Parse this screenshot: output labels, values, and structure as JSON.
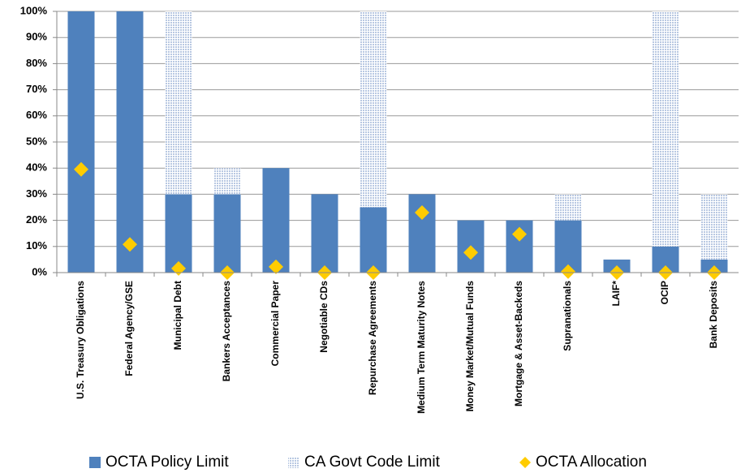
{
  "chart_data": {
    "type": "bar",
    "stacked": true,
    "grid": true,
    "legend": "bottom",
    "categories": [
      "U.S. Treasury Obligations",
      "Federal Agency/GSE",
      "Municipal Debt",
      "Bankers Acceptances",
      "Commercial Paper",
      "Negotiable CDs",
      "Repurchase Agreements",
      "Medium Term Maturity Notes",
      "Money Market/Mutual Funds",
      "Mortgage & Asset-Backeds",
      "Supranationals",
      "LAIF*",
      "OCIP",
      "Bank Deposits"
    ],
    "series": [
      {
        "name": "OCTA Policy Limit",
        "type": "bar",
        "color": "#4f81bd",
        "values": [
          100,
          100,
          30,
          30,
          40,
          30,
          25,
          30,
          20,
          20,
          20,
          5,
          10,
          5
        ]
      },
      {
        "name": "CA Govt Code Limit",
        "type": "bar",
        "color": "#b8c8e2",
        "values": [
          0,
          0,
          70,
          10,
          0,
          0,
          75,
          0,
          0,
          0,
          10,
          0,
          90,
          25
        ]
      },
      {
        "name": "OCTA Allocation",
        "type": "scatter",
        "color": "#ffcc00",
        "values": [
          39.5,
          10.8,
          1.6,
          0,
          2.2,
          0,
          0,
          23,
          7.7,
          14.7,
          0.4,
          0,
          0,
          0
        ]
      }
    ],
    "ylim": [
      0,
      100
    ],
    "yticks": [
      {
        "value": 0,
        "label": "0%"
      },
      {
        "value": 10,
        "label": "10%"
      },
      {
        "value": 20,
        "label": "20%"
      },
      {
        "value": 30,
        "label": "30%"
      },
      {
        "value": 40,
        "label": "40%"
      },
      {
        "value": 50,
        "label": "50%"
      },
      {
        "value": 60,
        "label": "60%"
      },
      {
        "value": 70,
        "label": "70%"
      },
      {
        "value": 80,
        "label": "80%"
      },
      {
        "value": 90,
        "label": "90%"
      },
      {
        "value": 100,
        "label": "100%"
      }
    ]
  }
}
